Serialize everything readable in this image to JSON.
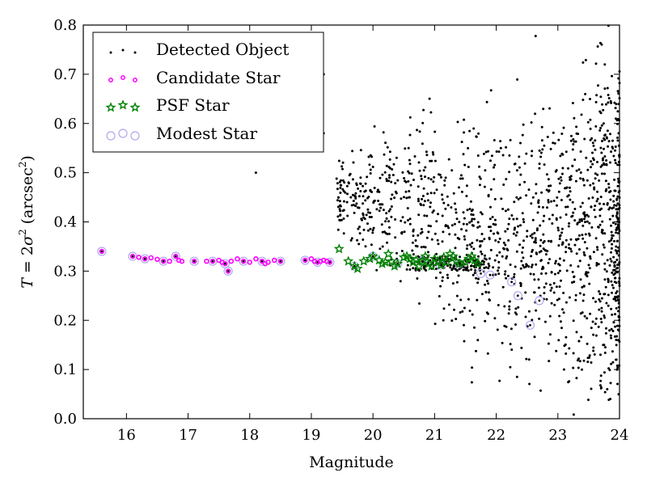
{
  "chart_data": {
    "type": "scatter",
    "xlabel": "Magnitude",
    "ylabel_parts": {
      "var": "T",
      "eq": " = 2",
      "sigma": "σ",
      "sigma_exp": "2",
      "unit_open": " (arcsec",
      "unit_exp": "2",
      "unit_close": ")"
    },
    "xlim": [
      15.3,
      24
    ],
    "ylim": [
      0,
      0.8
    ],
    "xticks": [
      16,
      17,
      18,
      19,
      20,
      21,
      22,
      23,
      24
    ],
    "yticks": [
      0.0,
      0.1,
      0.2,
      0.3,
      0.4,
      0.5,
      0.6,
      0.7,
      0.8
    ],
    "legend_position": "top-left",
    "legend": [
      "Detected Object",
      "Candidate Star",
      "PSF Star",
      "Modest Star"
    ],
    "colors": {
      "detected": "#000000",
      "candidate": "#ff00ff",
      "psf": "#008000",
      "modest": "#b0a8f0"
    },
    "series": [
      {
        "name": "Candidate Star",
        "points": [
          [
            15.6,
            0.34
          ],
          [
            16.1,
            0.33
          ],
          [
            16.2,
            0.328
          ],
          [
            16.3,
            0.325
          ],
          [
            16.4,
            0.327
          ],
          [
            16.5,
            0.324
          ],
          [
            16.6,
            0.32
          ],
          [
            16.7,
            0.32
          ],
          [
            16.8,
            0.33
          ],
          [
            16.85,
            0.322
          ],
          [
            16.9,
            0.32
          ],
          [
            17.1,
            0.32
          ],
          [
            17.3,
            0.32
          ],
          [
            17.4,
            0.32
          ],
          [
            17.5,
            0.322
          ],
          [
            17.55,
            0.318
          ],
          [
            17.6,
            0.315
          ],
          [
            17.65,
            0.3
          ],
          [
            17.7,
            0.32
          ],
          [
            17.8,
            0.325
          ],
          [
            17.9,
            0.32
          ],
          [
            18.0,
            0.318
          ],
          [
            18.1,
            0.325
          ],
          [
            18.2,
            0.32
          ],
          [
            18.25,
            0.315
          ],
          [
            18.3,
            0.318
          ],
          [
            18.4,
            0.322
          ],
          [
            18.5,
            0.32
          ],
          [
            18.9,
            0.322
          ],
          [
            19.0,
            0.325
          ],
          [
            19.05,
            0.32
          ],
          [
            19.1,
            0.318
          ],
          [
            19.15,
            0.32
          ],
          [
            19.2,
            0.322
          ],
          [
            19.25,
            0.32
          ],
          [
            19.3,
            0.318
          ]
        ]
      },
      {
        "name": "PSF Star",
        "points": [
          [
            19.45,
            0.345
          ],
          [
            19.6,
            0.32
          ],
          [
            19.7,
            0.31
          ],
          [
            19.75,
            0.305
          ],
          [
            19.85,
            0.32
          ],
          [
            19.95,
            0.325
          ],
          [
            20.0,
            0.33
          ],
          [
            20.1,
            0.322
          ],
          [
            20.15,
            0.315
          ],
          [
            20.2,
            0.318
          ],
          [
            20.25,
            0.335
          ],
          [
            20.3,
            0.32
          ],
          [
            20.35,
            0.31
          ],
          [
            20.4,
            0.315
          ],
          [
            20.5,
            0.328
          ],
          [
            20.55,
            0.33
          ],
          [
            20.6,
            0.325
          ],
          [
            20.65,
            0.318
          ],
          [
            20.7,
            0.322
          ],
          [
            20.75,
            0.31
          ],
          [
            20.8,
            0.32
          ],
          [
            20.85,
            0.33
          ],
          [
            20.9,
            0.315
          ],
          [
            20.95,
            0.31
          ],
          [
            21.0,
            0.325
          ],
          [
            21.05,
            0.32
          ],
          [
            21.1,
            0.312
          ],
          [
            21.15,
            0.328
          ],
          [
            21.2,
            0.318
          ],
          [
            21.25,
            0.335
          ],
          [
            21.3,
            0.33
          ],
          [
            21.35,
            0.32
          ],
          [
            21.4,
            0.315
          ],
          [
            21.5,
            0.318
          ],
          [
            21.55,
            0.325
          ],
          [
            21.6,
            0.33
          ],
          [
            21.65,
            0.322
          ],
          [
            21.7,
            0.315
          ]
        ]
      },
      {
        "name": "Modest Star",
        "points": [
          [
            15.6,
            0.34
          ],
          [
            16.1,
            0.33
          ],
          [
            16.3,
            0.325
          ],
          [
            16.6,
            0.32
          ],
          [
            16.8,
            0.33
          ],
          [
            17.1,
            0.32
          ],
          [
            17.4,
            0.32
          ],
          [
            17.6,
            0.315
          ],
          [
            17.65,
            0.3
          ],
          [
            17.9,
            0.32
          ],
          [
            18.2,
            0.32
          ],
          [
            18.5,
            0.32
          ],
          [
            18.9,
            0.322
          ],
          [
            19.1,
            0.318
          ],
          [
            19.3,
            0.318
          ],
          [
            19.7,
            0.31
          ],
          [
            20.0,
            0.33
          ],
          [
            20.4,
            0.315
          ],
          [
            20.8,
            0.32
          ],
          [
            21.1,
            0.312
          ],
          [
            21.4,
            0.315
          ],
          [
            21.75,
            0.295
          ],
          [
            21.9,
            0.292
          ],
          [
            22.25,
            0.278
          ],
          [
            22.35,
            0.25
          ],
          [
            22.55,
            0.19
          ],
          [
            22.7,
            0.24
          ]
        ]
      }
    ]
  }
}
